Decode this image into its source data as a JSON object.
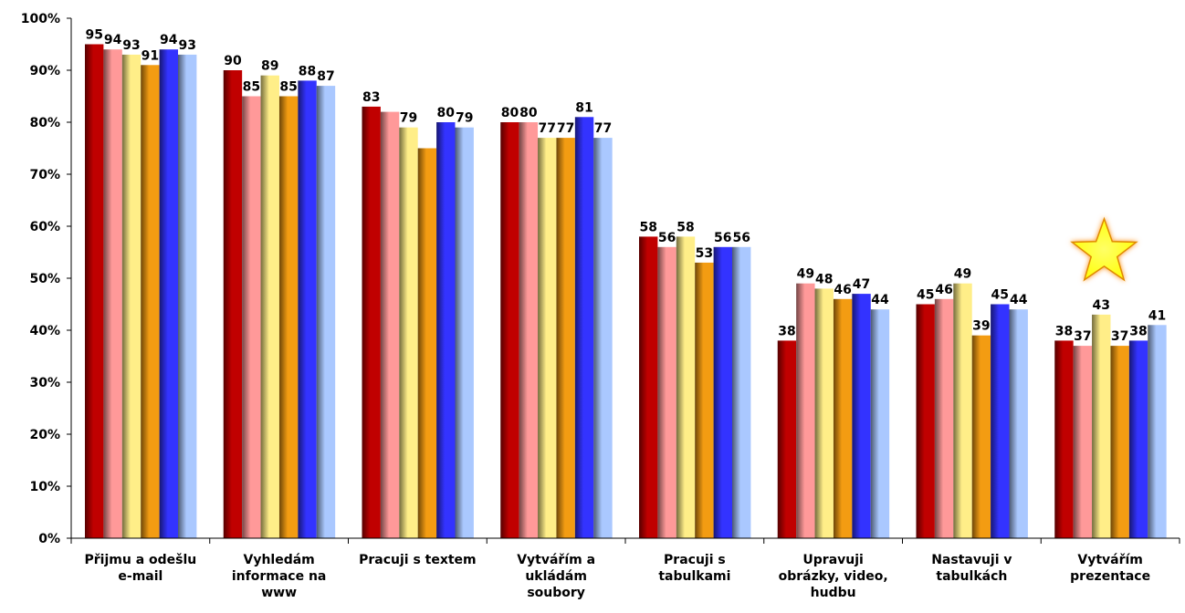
{
  "chart_data": {
    "type": "bar",
    "title": "",
    "xlabel": "",
    "ylabel": "",
    "ylim": [
      0,
      100
    ],
    "y_ticks": [
      "0%",
      "10%",
      "20%",
      "30%",
      "40%",
      "50%",
      "60%",
      "70%",
      "80%",
      "90%",
      "100%"
    ],
    "grid": false,
    "categories": [
      [
        "Přijmu a odešlu",
        "e-mail"
      ],
      [
        "Vyhledám",
        "informace na",
        "www"
      ],
      [
        "Pracuji s textem"
      ],
      [
        "Vytvářím a",
        "ukládám",
        "soubory"
      ],
      [
        "Pracuji s",
        "tabulkami"
      ],
      [
        "Upravuji",
        "obrázky, video,",
        "hudbu"
      ],
      [
        "Nastavuji v",
        "tabulkách"
      ],
      [
        "Vytvářím",
        "prezentace"
      ]
    ],
    "series": [
      {
        "values": [
          95,
          90,
          83,
          80,
          58,
          38,
          45,
          38
        ],
        "labels": [
          "95",
          "90",
          "83",
          "80",
          "58",
          "38",
          "45",
          "38"
        ],
        "color": "#c00000"
      },
      {
        "values": [
          94,
          85,
          82,
          80,
          56,
          49,
          46,
          37
        ],
        "labels": [
          "94",
          "85",
          "",
          "80",
          "56",
          "49",
          "46",
          "37"
        ],
        "color": "#ff9999"
      },
      {
        "values": [
          93,
          89,
          79,
          77,
          58,
          48,
          49,
          43
        ],
        "labels": [
          "93",
          "89",
          "79",
          "77",
          "58",
          "48",
          "49",
          "43"
        ],
        "color": "#ffee88"
      },
      {
        "values": [
          91,
          85,
          75,
          77,
          53,
          46,
          39,
          37
        ],
        "labels": [
          "91",
          "85",
          "",
          "77",
          "53",
          "46",
          "39",
          "37"
        ],
        "color": "#f39c12"
      },
      {
        "values": [
          94,
          88,
          80,
          81,
          56,
          47,
          45,
          38
        ],
        "labels": [
          "94",
          "88",
          "80",
          "81",
          "56",
          "47",
          "45",
          "38"
        ],
        "color": "#3333ff"
      },
      {
        "values": [
          93,
          87,
          79,
          77,
          56,
          44,
          44,
          41
        ],
        "labels": [
          "93",
          "87",
          "79",
          "77",
          "56",
          "44",
          "44",
          "41"
        ],
        "color": "#aac8ff"
      }
    ],
    "highlight": {
      "type": "star",
      "category_index": 7,
      "color": "#ffff00"
    }
  }
}
